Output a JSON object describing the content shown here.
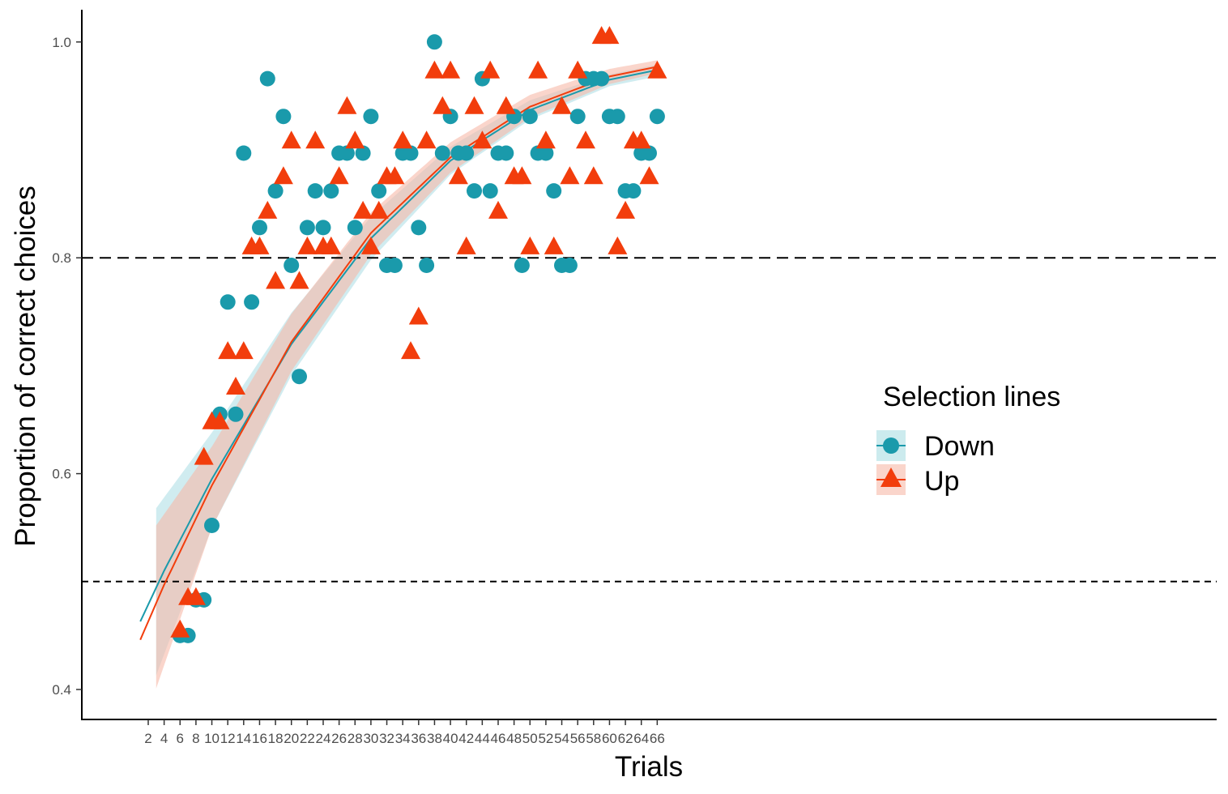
{
  "chart_data": {
    "type": "scatter",
    "xlabel": "Trials",
    "ylabel": "Proportion of correct choices",
    "xlim": [
      -2,
      70
    ],
    "ylim": [
      0.37,
      1.03
    ],
    "x_ticks": [
      2,
      4,
      6,
      8,
      10,
      12,
      14,
      16,
      18,
      20,
      22,
      24,
      26,
      28,
      30,
      32,
      34,
      36,
      38,
      40,
      42,
      44,
      46,
      48,
      50,
      52,
      54,
      56,
      58,
      60,
      62,
      64,
      66
    ],
    "y_ticks": [
      0.4,
      0.6,
      0.8,
      1.0
    ],
    "y_tick_labels": [
      "0.4",
      "0.6",
      "0.8",
      "1.0"
    ],
    "grid": false,
    "reference_lines": [
      {
        "y": 0.8,
        "style": "long-dash"
      },
      {
        "y": 0.5,
        "style": "short-dash"
      }
    ],
    "legend": {
      "title": "Selection lines",
      "position": "right-inside",
      "entries": [
        {
          "label": "Down",
          "marker": "circle"
        },
        {
          "label": "Up",
          "marker": "triangle"
        }
      ]
    },
    "series": [
      {
        "name": "Down",
        "marker": "circle",
        "color": "#1a9aab",
        "points": [
          [
            6,
            0.45
          ],
          [
            7,
            0.45
          ],
          [
            8,
            0.483
          ],
          [
            9,
            0.483
          ],
          [
            10,
            0.552
          ],
          [
            11,
            0.655
          ],
          [
            12,
            0.759
          ],
          [
            13,
            0.655
          ],
          [
            14,
            0.897
          ],
          [
            15,
            0.759
          ],
          [
            16,
            0.828
          ],
          [
            17,
            0.966
          ],
          [
            18,
            0.862
          ],
          [
            19,
            0.931
          ],
          [
            20,
            0.793
          ],
          [
            21,
            0.69
          ],
          [
            22,
            0.828
          ],
          [
            23,
            0.862
          ],
          [
            24,
            0.828
          ],
          [
            25,
            0.862
          ],
          [
            26,
            0.897
          ],
          [
            27,
            0.897
          ],
          [
            28,
            0.828
          ],
          [
            29,
            0.897
          ],
          [
            30,
            0.931
          ],
          [
            31,
            0.862
          ],
          [
            32,
            0.793
          ],
          [
            33,
            0.793
          ],
          [
            34,
            0.897
          ],
          [
            35,
            0.897
          ],
          [
            36,
            0.828
          ],
          [
            37,
            0.793
          ],
          [
            38,
            1.0
          ],
          [
            39,
            0.897
          ],
          [
            40,
            0.931
          ],
          [
            41,
            0.897
          ],
          [
            42,
            0.897
          ],
          [
            43,
            0.862
          ],
          [
            44,
            0.966
          ],
          [
            45,
            0.862
          ],
          [
            46,
            0.897
          ],
          [
            47,
            0.897
          ],
          [
            48,
            0.931
          ],
          [
            49,
            0.793
          ],
          [
            50,
            0.931
          ],
          [
            51,
            0.897
          ],
          [
            52,
            0.897
          ],
          [
            53,
            0.862
          ],
          [
            54,
            0.793
          ],
          [
            55,
            0.793
          ],
          [
            56,
            0.931
          ],
          [
            57,
            0.966
          ],
          [
            58,
            0.966
          ],
          [
            59,
            0.966
          ],
          [
            60,
            0.931
          ],
          [
            61,
            0.931
          ],
          [
            62,
            0.862
          ],
          [
            63,
            0.862
          ],
          [
            64,
            0.897
          ],
          [
            65,
            0.897
          ],
          [
            66,
            0.931
          ]
        ],
        "fit": [
          [
            1,
            0.463
          ],
          [
            4,
            0.51
          ],
          [
            10,
            0.595
          ],
          [
            20,
            0.72
          ],
          [
            30,
            0.818
          ],
          [
            40,
            0.89
          ],
          [
            50,
            0.937
          ],
          [
            60,
            0.965
          ],
          [
            66,
            0.974
          ]
        ],
        "band_upper": [
          [
            3,
            0.568
          ],
          [
            10,
            0.638
          ],
          [
            20,
            0.749
          ],
          [
            30,
            0.838
          ],
          [
            40,
            0.903
          ],
          [
            50,
            0.946
          ],
          [
            60,
            0.97
          ],
          [
            66,
            0.979
          ]
        ],
        "band_lower": [
          [
            3,
            0.413
          ],
          [
            10,
            0.55
          ],
          [
            20,
            0.691
          ],
          [
            30,
            0.798
          ],
          [
            40,
            0.877
          ],
          [
            50,
            0.928
          ],
          [
            60,
            0.959
          ],
          [
            66,
            0.968
          ]
        ]
      },
      {
        "name": "Up",
        "marker": "triangle",
        "color": "#f23d0c",
        "points": [
          [
            6,
            0.455
          ],
          [
            7,
            0.485
          ],
          [
            8,
            0.485
          ],
          [
            9,
            0.615
          ],
          [
            10,
            0.648
          ],
          [
            11,
            0.648
          ],
          [
            12,
            0.713
          ],
          [
            13,
            0.68
          ],
          [
            14,
            0.713
          ],
          [
            15,
            0.81
          ],
          [
            16,
            0.81
          ],
          [
            17,
            0.843
          ],
          [
            18,
            0.778
          ],
          [
            19,
            0.875
          ],
          [
            20,
            0.908
          ],
          [
            21,
            0.778
          ],
          [
            22,
            0.81
          ],
          [
            23,
            0.908
          ],
          [
            24,
            0.81
          ],
          [
            25,
            0.81
          ],
          [
            26,
            0.875
          ],
          [
            27,
            0.94
          ],
          [
            28,
            0.908
          ],
          [
            29,
            0.843
          ],
          [
            30,
            0.81
          ],
          [
            31,
            0.843
          ],
          [
            32,
            0.875
          ],
          [
            33,
            0.875
          ],
          [
            34,
            0.908
          ],
          [
            35,
            0.713
          ],
          [
            36,
            0.745
          ],
          [
            37,
            0.908
          ],
          [
            38,
            0.973
          ],
          [
            39,
            0.94
          ],
          [
            40,
            0.973
          ],
          [
            41,
            0.875
          ],
          [
            42,
            0.81
          ],
          [
            43,
            0.94
          ],
          [
            44,
            0.908
          ],
          [
            45,
            0.973
          ],
          [
            46,
            0.843
          ],
          [
            47,
            0.94
          ],
          [
            48,
            0.875
          ],
          [
            49,
            0.875
          ],
          [
            50,
            0.81
          ],
          [
            51,
            0.973
          ],
          [
            52,
            0.908
          ],
          [
            53,
            0.81
          ],
          [
            54,
            0.94
          ],
          [
            55,
            0.875
          ],
          [
            56,
            0.973
          ],
          [
            57,
            0.908
          ],
          [
            58,
            0.875
          ],
          [
            59,
            1.005
          ],
          [
            60,
            1.005
          ],
          [
            61,
            0.81
          ],
          [
            62,
            0.843
          ],
          [
            63,
            0.908
          ],
          [
            64,
            0.908
          ],
          [
            65,
            0.875
          ],
          [
            66,
            0.973
          ]
        ],
        "fit": [
          [
            1,
            0.446
          ],
          [
            4,
            0.497
          ],
          [
            10,
            0.589
          ],
          [
            20,
            0.722
          ],
          [
            30,
            0.823
          ],
          [
            40,
            0.893
          ],
          [
            50,
            0.94
          ],
          [
            60,
            0.968
          ],
          [
            66,
            0.977
          ]
        ],
        "band_upper": [
          [
            3,
            0.552
          ],
          [
            10,
            0.625
          ],
          [
            20,
            0.748
          ],
          [
            30,
            0.842
          ],
          [
            40,
            0.907
          ],
          [
            50,
            0.951
          ],
          [
            60,
            0.975
          ],
          [
            66,
            0.983
          ]
        ],
        "band_lower": [
          [
            3,
            0.401
          ],
          [
            10,
            0.55
          ],
          [
            20,
            0.695
          ],
          [
            30,
            0.803
          ],
          [
            40,
            0.879
          ],
          [
            50,
            0.93
          ],
          [
            60,
            0.961
          ],
          [
            66,
            0.971
          ]
        ]
      }
    ]
  },
  "colors": {
    "down": "#1a9aab",
    "down_band": "#aadde3",
    "up": "#f23d0c",
    "up_band": "#f7b9a8",
    "axis": "#000000",
    "tick_text": "#4d4d4d"
  }
}
